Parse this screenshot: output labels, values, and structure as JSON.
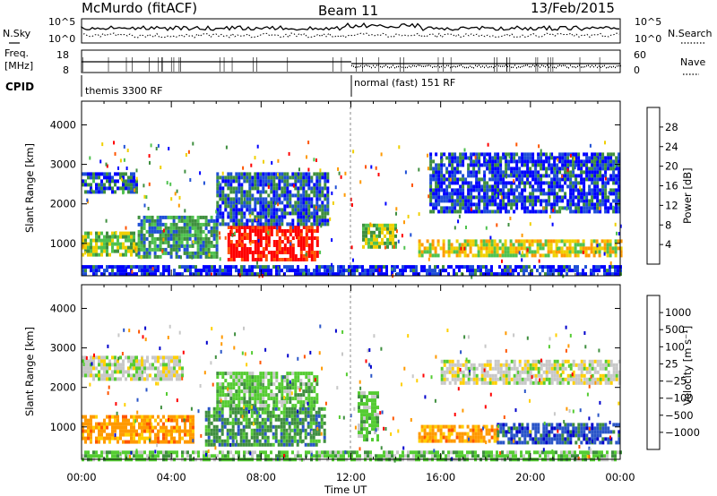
{
  "header": {
    "radar": "McMurdo (fitACF)",
    "beam": "Beam 11",
    "date": "13/Feb/2015"
  },
  "top_labels": {
    "nsky": "N.Sky",
    "nsearch": "N.Search",
    "freq_line1": "Freq.",
    "freq_line2": "[MHz]",
    "nave": "Nave",
    "cpid": "CPID",
    "cpid_first": "themis 3300 RF",
    "cpid_second": "normal (fast) 151 RF",
    "noise_ticks_left": [
      "10^5",
      "10^0"
    ],
    "noise_ticks_right": [
      "10^5",
      "10^0"
    ],
    "freq_ticks": [
      "18",
      "8"
    ],
    "nave_ticks": [
      "60",
      "0"
    ]
  },
  "colors": {
    "power": [
      "#0000ff",
      "#1f4fd6",
      "#3f8f3f",
      "#4fc24f",
      "#f0d000",
      "#ff9900",
      "#ff5500",
      "#ff0000"
    ],
    "velocity": [
      "#0000cc",
      "#2a55c8",
      "#3f8f3f",
      "#55cc33",
      "#c8c8c8",
      "#ffd000",
      "#ff9900",
      "#ff5500",
      "#ff0000"
    ]
  },
  "chart_data": [
    {
      "type": "heatmap",
      "name": "power",
      "xlabel": "Time UT",
      "ylabel": "Slant Range [km]",
      "x_ticks": [
        "00:00",
        "04:00",
        "08:00",
        "12:00",
        "16:00",
        "20:00",
        "00:00"
      ],
      "xlim_hours": [
        0,
        24
      ],
      "ylim": [
        180,
        4600
      ],
      "y_ticks": [
        1000,
        2000,
        3000,
        4000
      ],
      "colorbar": {
        "label": "Power [dB]",
        "range": [
          0,
          32
        ],
        "ticks": [
          4,
          8,
          12,
          16,
          20,
          24,
          28
        ]
      },
      "regions": [
        {
          "t": [
            0.0,
            2.5
          ],
          "r": [
            700,
            1300
          ],
          "level": 0.45
        },
        {
          "t": [
            0.0,
            2.5
          ],
          "r": [
            2300,
            2800
          ],
          "level": 0.22
        },
        {
          "t": [
            2.5,
            6.0
          ],
          "r": [
            650,
            1700
          ],
          "level": 0.32
        },
        {
          "t": [
            6.5,
            10.5
          ],
          "r": [
            550,
            1450
          ],
          "level": 0.95
        },
        {
          "t": [
            6.0,
            11.0
          ],
          "r": [
            1500,
            2800
          ],
          "level": 0.2
        },
        {
          "t": [
            12.5,
            14.0
          ],
          "r": [
            900,
            1500
          ],
          "level": 0.45
        },
        {
          "t": [
            15.0,
            24.0
          ],
          "r": [
            650,
            1100
          ],
          "level": 0.55
        },
        {
          "t": [
            15.5,
            24.0
          ],
          "r": [
            1800,
            3300
          ],
          "level": 0.15
        },
        {
          "t": [
            0.0,
            24.0
          ],
          "r": [
            180,
            450
          ],
          "level": 0.12
        }
      ]
    },
    {
      "type": "heatmap",
      "name": "velocity",
      "xlabel": "Time UT",
      "ylabel": "Slant Range [km]",
      "x_ticks": [
        "00:00",
        "04:00",
        "08:00",
        "12:00",
        "16:00",
        "20:00",
        "00:00"
      ],
      "xlim_hours": [
        0,
        24
      ],
      "ylim": [
        180,
        4600
      ],
      "y_ticks": [
        1000,
        2000,
        3000,
        4000
      ],
      "colorbar": {
        "label": "Velocity [m s⁻¹]",
        "tick_labels": [
          "1000",
          "500",
          "100",
          "25",
          "−25",
          "−100",
          "−500",
          "−1000"
        ]
      },
      "regions": [
        {
          "t": [
            0.0,
            5.0
          ],
          "r": [
            650,
            1300
          ],
          "level": 6
        },
        {
          "t": [
            0.0,
            4.5
          ],
          "r": [
            2200,
            2800
          ],
          "level": 4
        },
        {
          "t": [
            5.5,
            10.8
          ],
          "r": [
            550,
            1500
          ],
          "level": 2
        },
        {
          "t": [
            6.0,
            10.5
          ],
          "r": [
            1500,
            2400
          ],
          "level": 3
        },
        {
          "t": [
            12.3,
            13.2
          ],
          "r": [
            650,
            1900
          ],
          "level": 3
        },
        {
          "t": [
            15.0,
            18.5
          ],
          "r": [
            650,
            1050
          ],
          "level": 6
        },
        {
          "t": [
            18.5,
            24.0
          ],
          "r": [
            600,
            1100
          ],
          "level": 1
        },
        {
          "t": [
            16.0,
            24.0
          ],
          "r": [
            2100,
            2700
          ],
          "level": 4
        },
        {
          "t": [
            0.0,
            24.0
          ],
          "r": [
            180,
            400
          ],
          "level": 3
        }
      ]
    }
  ]
}
